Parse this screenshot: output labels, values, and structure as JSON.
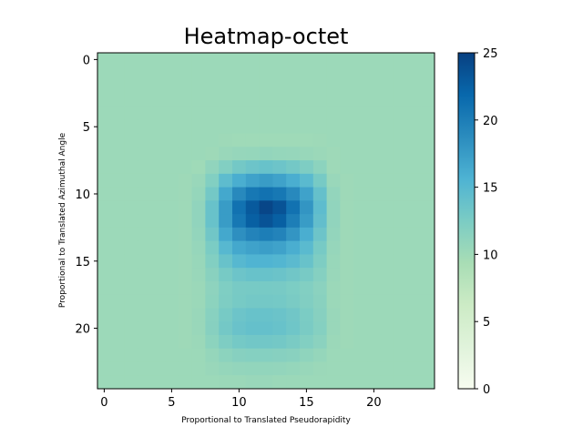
{
  "chart_data": {
    "type": "heatmap",
    "title": "Heatmap-octet",
    "xlabel": "Proportional to Translated Pseudorapidity",
    "ylabel": "Proportional to Translated Azimuthal Angle",
    "rows": 25,
    "cols": 25,
    "xlim": [
      -0.5,
      24.5
    ],
    "ylim": [
      24.5,
      -0.5
    ],
    "x_ticks": [
      0,
      5,
      10,
      15,
      20
    ],
    "y_ticks": [
      0,
      5,
      10,
      15,
      20
    ],
    "colorbar": {
      "min": 0,
      "max": 25,
      "ticks": [
        0,
        5,
        10,
        15,
        20,
        25
      ],
      "colormap": "GnBu"
    },
    "background_value": 10.2,
    "values": [
      [
        10.2,
        10.2,
        10.2,
        10.2,
        10.2,
        10.2,
        10.2,
        10.2,
        10.2,
        10.2,
        10.2,
        10.2,
        10.2,
        10.2,
        10.2,
        10.2,
        10.2,
        10.2,
        10.2,
        10.2,
        10.2,
        10.2,
        10.2,
        10.2,
        10.2
      ],
      [
        10.2,
        10.2,
        10.2,
        10.2,
        10.2,
        10.2,
        10.2,
        10.2,
        10.2,
        10.2,
        10.2,
        10.2,
        10.2,
        10.2,
        10.2,
        10.2,
        10.2,
        10.2,
        10.2,
        10.2,
        10.2,
        10.2,
        10.2,
        10.2,
        10.2
      ],
      [
        10.2,
        10.2,
        10.2,
        10.2,
        10.2,
        10.2,
        10.2,
        10.2,
        10.2,
        10.2,
        10.2,
        10.2,
        10.2,
        10.2,
        10.2,
        10.2,
        10.2,
        10.2,
        10.2,
        10.2,
        10.2,
        10.2,
        10.2,
        10.2,
        10.2
      ],
      [
        10.2,
        10.2,
        10.2,
        10.2,
        10.2,
        10.2,
        10.2,
        10.2,
        10.2,
        10.2,
        10.2,
        10.2,
        10.2,
        10.2,
        10.2,
        10.2,
        10.2,
        10.2,
        10.2,
        10.2,
        10.2,
        10.2,
        10.2,
        10.2,
        10.2
      ],
      [
        10.2,
        10.2,
        10.2,
        10.2,
        10.2,
        10.2,
        10.2,
        10.2,
        10.2,
        10.2,
        10.2,
        10.2,
        10.2,
        10.2,
        10.2,
        10.2,
        10.2,
        10.2,
        10.2,
        10.2,
        10.2,
        10.2,
        10.2,
        10.2,
        10.2
      ],
      [
        10.2,
        10.2,
        10.2,
        10.2,
        10.2,
        10.2,
        10.2,
        10.2,
        10.2,
        10.2,
        10.2,
        10.2,
        10.2,
        10.2,
        10.2,
        10.2,
        10.2,
        10.2,
        10.2,
        10.2,
        10.2,
        10.2,
        10.2,
        10.2,
        10.2
      ],
      [
        10.2,
        10.2,
        10.2,
        10.2,
        10.2,
        10.2,
        10.2,
        10.2,
        10.2,
        10.1,
        10.0,
        10.0,
        10.0,
        10.0,
        10.0,
        10.0,
        10.1,
        10.2,
        10.2,
        10.2,
        10.2,
        10.2,
        10.2,
        10.2,
        10.2
      ],
      [
        10.2,
        10.2,
        10.2,
        10.2,
        10.2,
        10.2,
        10.2,
        10.2,
        10.1,
        10.4,
        10.6,
        10.7,
        10.8,
        10.7,
        10.6,
        10.5,
        10.3,
        10.1,
        10.2,
        10.2,
        10.2,
        10.2,
        10.2,
        10.2,
        10.2
      ],
      [
        10.2,
        10.2,
        10.2,
        10.2,
        10.2,
        10.2,
        10.2,
        10.0,
        11.0,
        12.0,
        13.0,
        13.5,
        13.8,
        13.5,
        13.0,
        12.3,
        11.3,
        10.1,
        10.2,
        10.2,
        10.2,
        10.2,
        10.2,
        10.2,
        10.2
      ],
      [
        10.2,
        10.2,
        10.2,
        10.2,
        10.2,
        10.2,
        10.1,
        10.4,
        12.0,
        14.5,
        16.0,
        17.0,
        17.5,
        17.0,
        16.0,
        14.8,
        12.8,
        10.4,
        10.1,
        10.2,
        10.2,
        10.2,
        10.2,
        10.2,
        10.2
      ],
      [
        10.2,
        10.2,
        10.2,
        10.2,
        10.2,
        10.2,
        10.1,
        10.7,
        13.0,
        16.5,
        19.0,
        20.5,
        21.0,
        20.5,
        19.0,
        17.0,
        14.0,
        10.8,
        10.1,
        10.2,
        10.2,
        10.2,
        10.2,
        10.2,
        10.2
      ],
      [
        10.2,
        10.2,
        10.2,
        10.2,
        10.2,
        10.2,
        10.1,
        11.0,
        13.8,
        17.5,
        21.0,
        23.0,
        24.5,
        23.5,
        21.0,
        18.0,
        14.5,
        11.0,
        10.1,
        10.2,
        10.2,
        10.2,
        10.2,
        10.2,
        10.2
      ],
      [
        10.2,
        10.2,
        10.2,
        10.2,
        10.2,
        10.2,
        10.1,
        11.0,
        13.8,
        17.5,
        20.5,
        22.5,
        23.5,
        22.5,
        20.0,
        17.5,
        14.2,
        11.0,
        10.1,
        10.2,
        10.2,
        10.2,
        10.2,
        10.2,
        10.2
      ],
      [
        10.2,
        10.2,
        10.2,
        10.2,
        10.2,
        10.2,
        10.1,
        10.8,
        13.2,
        16.5,
        18.5,
        19.5,
        20.0,
        19.5,
        18.0,
        16.0,
        13.5,
        10.8,
        10.1,
        10.2,
        10.2,
        10.2,
        10.2,
        10.2,
        10.2
      ],
      [
        10.2,
        10.2,
        10.2,
        10.2,
        10.2,
        10.2,
        10.1,
        10.6,
        12.5,
        15.0,
        16.5,
        17.0,
        17.3,
        17.0,
        16.0,
        14.8,
        12.8,
        10.6,
        10.1,
        10.2,
        10.2,
        10.2,
        10.2,
        10.2,
        10.2
      ],
      [
        10.2,
        10.2,
        10.2,
        10.2,
        10.2,
        10.2,
        10.1,
        10.5,
        12.0,
        13.8,
        15.0,
        15.5,
        15.5,
        15.3,
        14.7,
        13.8,
        12.3,
        10.5,
        10.1,
        10.2,
        10.2,
        10.2,
        10.2,
        10.2,
        10.2
      ],
      [
        10.2,
        10.2,
        10.2,
        10.2,
        10.2,
        10.2,
        10.1,
        10.4,
        11.5,
        12.8,
        13.5,
        13.8,
        13.8,
        13.6,
        13.2,
        12.7,
        11.8,
        10.4,
        10.1,
        10.2,
        10.2,
        10.2,
        10.2,
        10.2,
        10.2
      ],
      [
        10.2,
        10.2,
        10.2,
        10.2,
        10.2,
        10.2,
        10.1,
        10.3,
        11.2,
        12.2,
        12.7,
        12.8,
        12.8,
        12.7,
        12.4,
        12.0,
        11.4,
        10.3,
        10.1,
        10.2,
        10.2,
        10.2,
        10.2,
        10.2,
        10.2
      ],
      [
        10.2,
        10.2,
        10.2,
        10.2,
        10.2,
        10.2,
        10.1,
        10.3,
        11.3,
        12.3,
        12.8,
        13.0,
        13.0,
        12.9,
        12.6,
        12.1,
        11.5,
        10.3,
        10.1,
        10.2,
        10.2,
        10.2,
        10.2,
        10.2,
        10.2
      ],
      [
        10.2,
        10.2,
        10.2,
        10.2,
        10.2,
        10.2,
        10.1,
        10.4,
        11.6,
        12.8,
        13.5,
        13.8,
        13.8,
        13.6,
        13.2,
        12.5,
        11.7,
        10.4,
        10.1,
        10.2,
        10.2,
        10.2,
        10.2,
        10.2,
        10.2
      ],
      [
        10.2,
        10.2,
        10.2,
        10.2,
        10.2,
        10.2,
        10.1,
        10.4,
        11.7,
        13.0,
        13.7,
        14.0,
        14.0,
        13.8,
        13.3,
        12.6,
        11.8,
        10.4,
        10.1,
        10.2,
        10.2,
        10.2,
        10.2,
        10.2,
        10.2
      ],
      [
        10.2,
        10.2,
        10.2,
        10.2,
        10.2,
        10.2,
        10.1,
        10.3,
        11.3,
        12.3,
        12.9,
        13.1,
        13.1,
        13.0,
        12.6,
        12.0,
        11.4,
        10.3,
        10.1,
        10.2,
        10.2,
        10.2,
        10.2,
        10.2,
        10.2
      ],
      [
        10.2,
        10.2,
        10.2,
        10.2,
        10.2,
        10.2,
        10.2,
        10.2,
        10.7,
        11.3,
        11.7,
        11.8,
        11.8,
        11.7,
        11.5,
        11.1,
        10.7,
        10.2,
        10.2,
        10.2,
        10.2,
        10.2,
        10.2,
        10.2,
        10.2
      ],
      [
        10.2,
        10.2,
        10.2,
        10.2,
        10.2,
        10.2,
        10.2,
        10.2,
        10.4,
        10.7,
        10.8,
        10.9,
        10.9,
        10.8,
        10.7,
        10.5,
        10.3,
        10.2,
        10.2,
        10.2,
        10.2,
        10.2,
        10.2,
        10.2,
        10.2
      ],
      [
        10.2,
        10.2,
        10.2,
        10.2,
        10.2,
        10.2,
        10.2,
        10.2,
        10.2,
        10.3,
        10.3,
        10.4,
        10.4,
        10.3,
        10.3,
        10.2,
        10.2,
        10.2,
        10.2,
        10.2,
        10.2,
        10.2,
        10.2,
        10.2,
        10.2
      ]
    ]
  }
}
